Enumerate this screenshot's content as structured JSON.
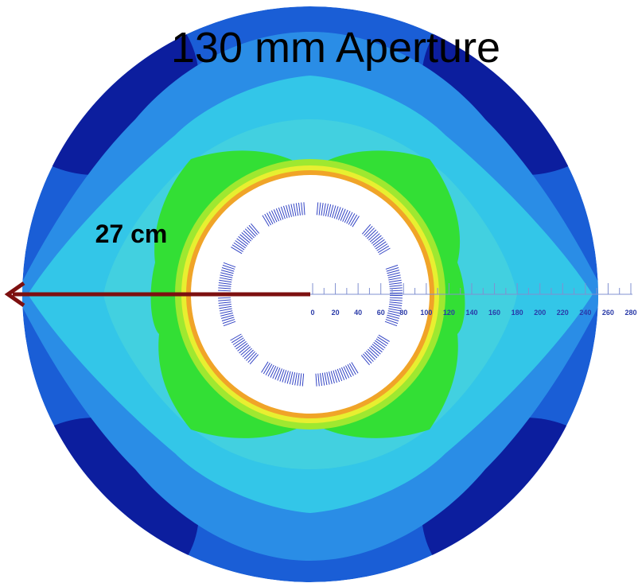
{
  "title": "130 mm Aperture",
  "radius_label": "27 cm",
  "scale": {
    "labels": [
      "0",
      "20",
      "40",
      "60",
      "80",
      "100",
      "120",
      "140",
      "160",
      "180",
      "200",
      "220",
      "240",
      "260",
      "280"
    ]
  }
}
